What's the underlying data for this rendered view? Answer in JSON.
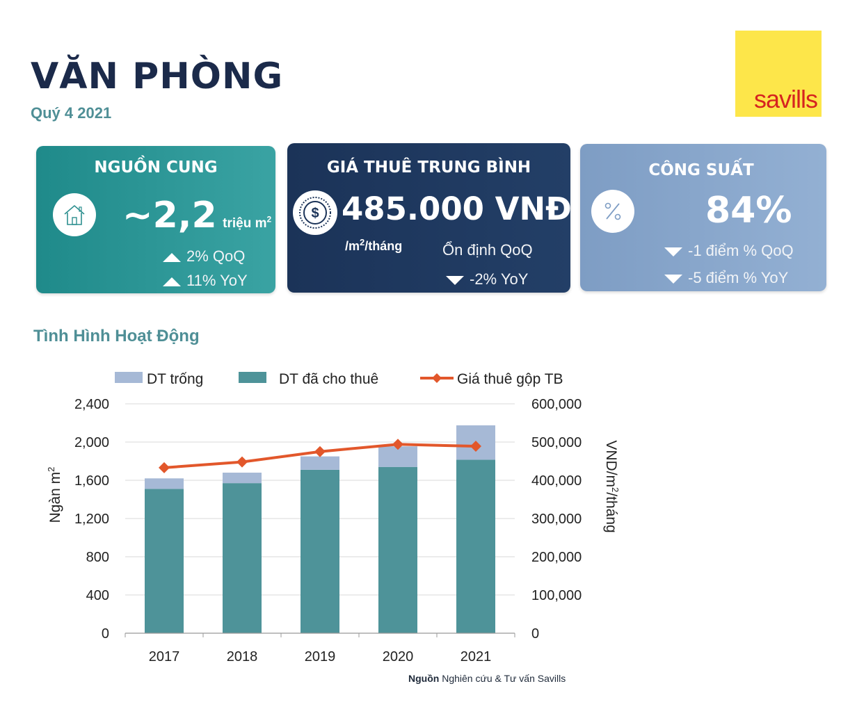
{
  "header": {
    "title": "VĂN PHÒNG",
    "subtitle": "Quý 4 2021",
    "logo": "savills"
  },
  "cards": {
    "supply": {
      "heading": "NGUỒN CUNG",
      "icon": "house-icon",
      "value": "~2,2",
      "unit": "triệu m",
      "unit_sup": "2",
      "changes": [
        {
          "direction": "up",
          "text": "2% QoQ"
        },
        {
          "direction": "up",
          "text": "11% YoY"
        }
      ]
    },
    "rent": {
      "heading": "GIÁ THUÊ TRUNG BÌNH",
      "icon": "dollar-coin-icon",
      "value": "485.000 VNĐ",
      "unit_prefix": "/m",
      "unit_sup": "2",
      "unit_suffix": "/tháng",
      "stable": "Ổn định QoQ",
      "changes": [
        {
          "direction": "down",
          "text": "-2% YoY"
        }
      ]
    },
    "occupancy": {
      "heading": "CÔNG SUẤT",
      "icon": "percent-icon",
      "value": "84%",
      "changes": [
        {
          "direction": "down",
          "text": "-1 điểm % QoQ"
        },
        {
          "direction": "down",
          "text": "-5 điểm % YoY"
        }
      ]
    }
  },
  "section_title": "Tình Hình Hoạt Động",
  "colors": {
    "vacant": "#a6b9d6",
    "leased": "#4e9399",
    "rent_line": "#e2572b",
    "title": "#1b2a4a",
    "teal_text": "#4f8f96"
  },
  "chart_data": {
    "type": "bar",
    "stacked": true,
    "categories": [
      "2017",
      "2018",
      "2019",
      "2020",
      "2021"
    ],
    "series": [
      {
        "name": "DT đã cho thuê",
        "type": "bar",
        "axis": "left",
        "values": [
          1510,
          1570,
          1710,
          1740,
          1815
        ]
      },
      {
        "name": "DT trống",
        "type": "bar",
        "axis": "left",
        "values": [
          110,
          110,
          140,
          215,
          360
        ]
      },
      {
        "name": "Giá thuê gộp TB",
        "type": "line",
        "axis": "right",
        "values": [
          433000,
          448000,
          475000,
          494000,
          489000
        ]
      }
    ],
    "legend_order": [
      "DT trống",
      "DT đã cho thuê",
      "Giá thuê gộp TB"
    ],
    "legend_position": "top",
    "ylabel_left": "Ngàn m",
    "ylabel_left_sup": "2",
    "ylabel_right": "VND/m",
    "ylabel_right_sup": "2",
    "ylabel_right_suffix": "/tháng",
    "ylim_left": [
      0,
      2400
    ],
    "ylim_right": [
      0,
      600000
    ],
    "yticks_left": [
      "0",
      "400",
      "800",
      "1,200",
      "1,600",
      "2,000",
      "2,400"
    ],
    "yticks_right": [
      "0",
      "100,000",
      "200,000",
      "300,000",
      "400,000",
      "500,000",
      "600,000"
    ],
    "grid": "horizontal"
  },
  "source": {
    "label": "Nguồn",
    "text": " Nghiên cứu & Tư vấn Savills"
  }
}
